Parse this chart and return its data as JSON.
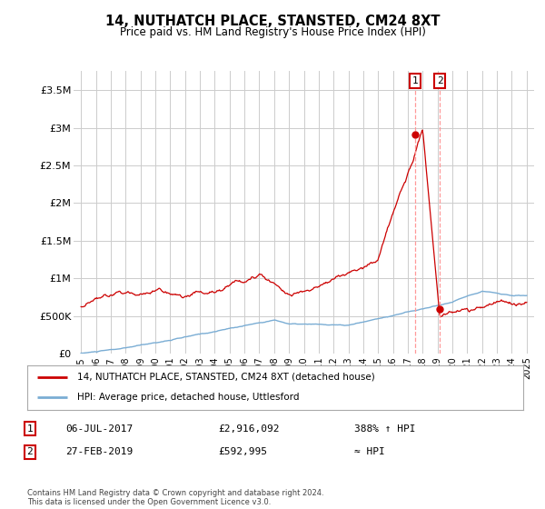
{
  "title": "14, NUTHATCH PLACE, STANSTED, CM24 8XT",
  "subtitle": "Price paid vs. HM Land Registry's House Price Index (HPI)",
  "ylim": [
    0,
    3750000
  ],
  "yticks": [
    0,
    500000,
    1000000,
    1500000,
    2000000,
    2500000,
    3000000,
    3500000
  ],
  "ytick_labels": [
    "£0",
    "£500K",
    "£1M",
    "£1.5M",
    "£2M",
    "£2.5M",
    "£3M",
    "£3.5M"
  ],
  "hpi_color": "#7aadd4",
  "price_color": "#cc0000",
  "dashed_line_color": "#ff9999",
  "point1_date_num": 2017.51,
  "point1_price": 2916092,
  "point1_label": "06-JUL-2017",
  "point1_value": "£2,916,092",
  "point1_hpi": "388% ↑ HPI",
  "point2_date_num": 2019.15,
  "point2_price": 592995,
  "point2_label": "27-FEB-2019",
  "point2_value": "£592,995",
  "point2_hpi": "≈ HPI",
  "legend_line1": "14, NUTHATCH PLACE, STANSTED, CM24 8XT (detached house)",
  "legend_line2": "HPI: Average price, detached house, Uttlesford",
  "footer": "Contains HM Land Registry data © Crown copyright and database right 2024.\nThis data is licensed under the Open Government Licence v3.0.",
  "bg_color": "#ffffff",
  "plot_bg_color": "#ffffff",
  "grid_color": "#cccccc"
}
